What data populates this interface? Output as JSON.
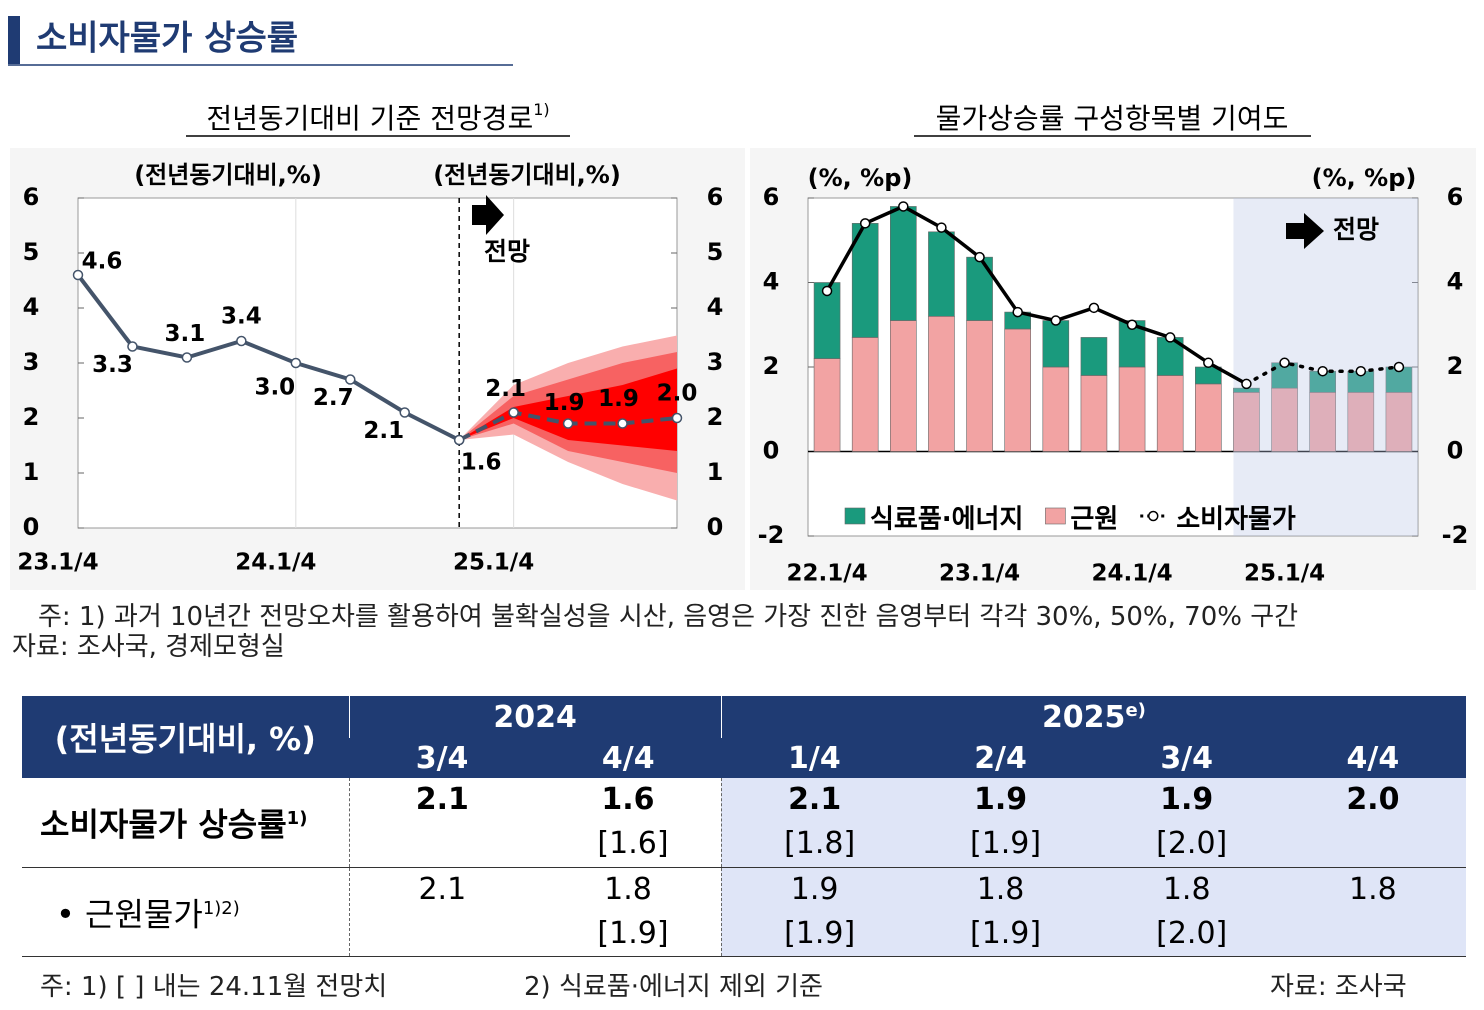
{
  "title": "소비자물가 상승률",
  "chart_data": [
    {
      "type": "line",
      "title": "전년동기대비 기준 전망경로",
      "title_note": "1)",
      "y_label": "(전년동기대비,%)",
      "y2_label": "(전년동기대비,%)",
      "annotation": "전망",
      "categories": [
        "23.1/4",
        null,
        null,
        null,
        "24.1/4",
        null,
        null,
        null,
        "25.1/4",
        null,
        null,
        null
      ],
      "series": [
        {
          "color": "#44546a",
          "line_style": "solid",
          "values": [
            4.6,
            3.3,
            3.1,
            3.4,
            3.0,
            2.7,
            2.1,
            1.6,
            null,
            null,
            null,
            null
          ],
          "value_labels": [
            "4.6",
            "3.3",
            "3.1",
            "3.4",
            "3.0",
            "2.7",
            "2.1",
            "1.6",
            null,
            null,
            null,
            null
          ]
        },
        {
          "color": "#44546a",
          "line_style": "dashed",
          "values": [
            null,
            null,
            null,
            null,
            null,
            null,
            null,
            1.6,
            2.1,
            1.9,
            1.9,
            2.0
          ],
          "value_labels": [
            null,
            null,
            null,
            null,
            null,
            null,
            null,
            null,
            "2.1",
            "1.9",
            "1.9",
            "2.0"
          ]
        }
      ],
      "bands": [
        {
          "color": "#f9aeae",
          "lower": [
            null,
            null,
            null,
            null,
            null,
            null,
            null,
            1.6,
            1.7,
            1.2,
            0.8,
            0.5
          ],
          "upper": [
            null,
            null,
            null,
            null,
            null,
            null,
            null,
            1.6,
            2.6,
            3.0,
            3.3,
            3.5
          ]
        },
        {
          "color": "#f76262",
          "lower": [
            null,
            null,
            null,
            null,
            null,
            null,
            null,
            1.6,
            1.9,
            1.4,
            1.2,
            1.0
          ],
          "upper": [
            null,
            null,
            null,
            null,
            null,
            null,
            null,
            1.6,
            2.4,
            2.7,
            3.0,
            3.2
          ]
        },
        {
          "color": "#ff0000",
          "lower": [
            null,
            null,
            null,
            null,
            null,
            null,
            null,
            1.6,
            2.0,
            1.6,
            1.5,
            1.4
          ],
          "upper": [
            null,
            null,
            null,
            null,
            null,
            null,
            null,
            1.6,
            2.2,
            2.4,
            2.6,
            2.9
          ]
        }
      ],
      "ylim": [
        0,
        6
      ],
      "yticks": [
        0,
        1,
        2,
        3,
        4,
        5,
        6
      ],
      "y2lim": [
        0,
        6
      ],
      "y2ticks": [
        0,
        1,
        2,
        3,
        4,
        5,
        6
      ]
    },
    {
      "type": "bar",
      "stacked": true,
      "title": "물가상승률 구성항목별 기여도",
      "y_label": "(%, %p)",
      "y2_label": "(%, %p)",
      "annotation": "전망",
      "categories": [
        "22.1/4",
        null,
        null,
        null,
        "23.1/4",
        null,
        null,
        null,
        "24.1/4",
        null,
        null,
        null,
        "25.1/4",
        null,
        null,
        null
      ],
      "series": [
        {
          "name": "식료품·에너지",
          "color": "#1a9a7d",
          "values": [
            1.8,
            2.7,
            2.7,
            2.0,
            1.5,
            0.4,
            1.1,
            0.9,
            1.1,
            0.9,
            0.4,
            0.1,
            0.6,
            0.5,
            0.5,
            0.6
          ]
        },
        {
          "name": "근원",
          "color": "#f2a3a3",
          "values": [
            2.2,
            2.7,
            3.1,
            3.2,
            3.1,
            2.9,
            2.0,
            1.8,
            2.0,
            1.8,
            1.6,
            1.4,
            1.5,
            1.4,
            1.4,
            1.4
          ]
        },
        {
          "name": "소비자물가",
          "type": "line",
          "color": "#000000",
          "values": [
            3.8,
            5.4,
            5.8,
            5.3,
            4.6,
            3.3,
            3.1,
            3.4,
            3.0,
            2.7,
            2.1,
            1.6,
            2.1,
            1.9,
            1.9,
            2.0
          ]
        }
      ],
      "ylim": [
        -2,
        6
      ],
      "yticks": [
        -2,
        0,
        2,
        4,
        6
      ],
      "y2lim": [
        -2,
        6
      ],
      "y2ticks": [
        -2,
        0,
        2,
        4,
        6
      ]
    }
  ],
  "notes": [
    "주: 1) 과거 10년간 전망오차를 활용하여 불확실성을 시산, 음영은 가장 진한 음영부터 각각 30%, 50%, 70% 구간",
    "자료: 조사국, 경제모형실"
  ],
  "table": {
    "corner": "(전년동기대비, %)",
    "years": [
      {
        "label": "2024"
      },
      {
        "label": "2025",
        "note": "e)"
      }
    ],
    "quarters": [
      "3/4",
      "4/4",
      "1/4",
      "2/4",
      "3/4",
      "4/4"
    ],
    "rows": [
      {
        "label": "소비자물가 상승률",
        "note": "1)",
        "values": [
          "2.1",
          "1.6",
          "2.1",
          "1.9",
          "1.9",
          "2.0"
        ],
        "previous": [
          null,
          "[1.6]",
          "[1.8]",
          "[1.9]",
          "[2.0]",
          null
        ]
      },
      {
        "label": "• 근원물가",
        "note": "1)2)",
        "values": [
          "2.1",
          "1.8",
          "1.9",
          "1.8",
          "1.8",
          "1.8"
        ],
        "previous": [
          null,
          "[1.9]",
          "[1.9]",
          "[1.9]",
          "[2.0]",
          null
        ]
      }
    ]
  },
  "footer": {
    "note1": "주: 1) [   ] 내는 24.11월 전망치",
    "note2": "2) 식료품·에너지 제외 기준",
    "source": "자료: 조사국"
  }
}
